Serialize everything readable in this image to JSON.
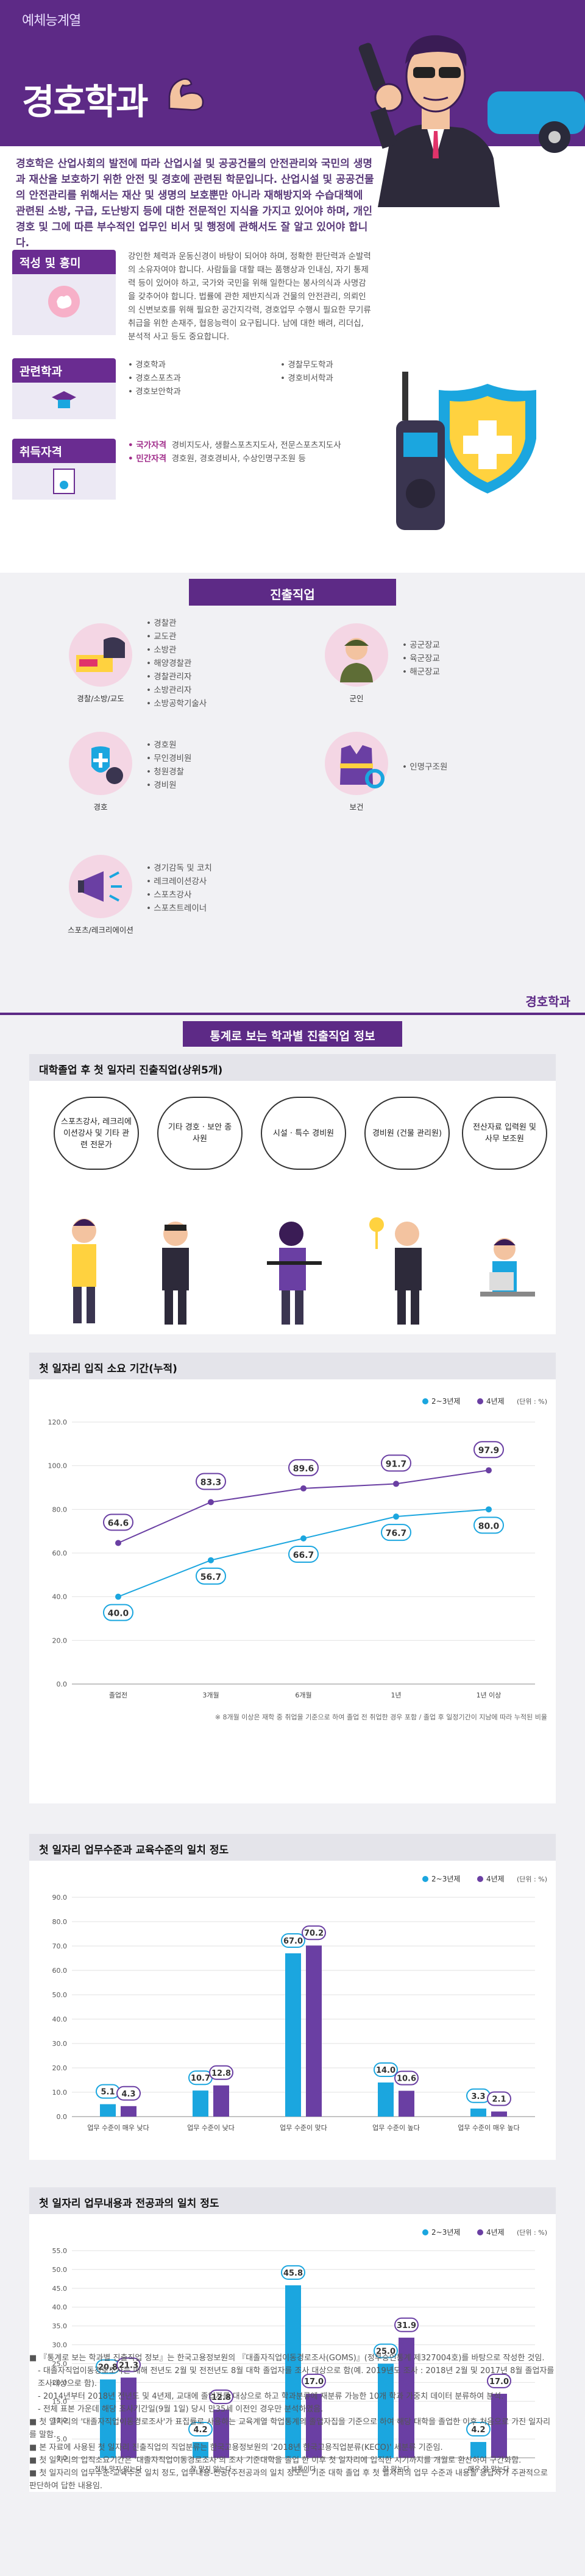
{
  "header": {
    "category": "예체능계열",
    "title": "경호학과"
  },
  "intro": "경호학은 산업사회의 발전에 따라 산업시설 및 공공건물의 안전관리와 국민의 생명과 재산을 보호하기 위한 안전 및 경호에 관련된 학문입니다. 산업시설 및 공공건물의 안전관리를 위해서는 재산 및 생명의 보호뿐만 아니라 재해방지와 수습대책에 관련된 소방, 구급, 도난방지 등에 대한 전문적인 지식을 가지고 있어야 하며, 개인경호 및 그에 따른 부수적인 업무인 비서 및 행정에 관해서도 잘 알고 있어야 합니다.",
  "aptitude": {
    "label": "적성 및 흥미",
    "text": "강인한 체력과 운동신경이 바탕이 되어야 하며, 정확한 판단력과 순발력의 소유자여야 합니다. 사람들을 대할 때는 품행상과 인내심, 자기 통제력 등이 있어야 하고, 국가와 국민을 위해 일한다는 봉사의식과 사명감을 갖추어야 합니다. 법률에 관한 제반지식과 건물의 안전관리, 의뢰인의 신변보호를 위해 필요한 공간지각력, 경호업무 수행시 필요한 무기류 취급을 위한 손재주, 협응능력이 요구됩니다. 남에 대한 배려, 리더십, 분석적 사고 등도 중요합니다."
  },
  "related": {
    "label": "관련학과",
    "col1": [
      "경호학과",
      "경호스포츠과",
      "경호보안학과"
    ],
    "col2": [
      "경찰무도학과",
      "경호비서학과"
    ]
  },
  "certs": {
    "label": "취득자격",
    "items": [
      {
        "k": "국가자격",
        "v": "경비지도사, 생활스포츠지도사, 전문스포츠지도사"
      },
      {
        "k": "민간자격",
        "v": "경호원, 경호경비사, 수상인명구조원 등"
      }
    ]
  },
  "careers": {
    "title": "진출직업",
    "groups": [
      {
        "caption": "경찰/소방/교도",
        "items": [
          "경찰관",
          "교도관",
          "소방관",
          "해양경찰관",
          "경찰관리자",
          "소방관리자",
          "소방공학기술사"
        ]
      },
      {
        "caption": "군인",
        "items": [
          "공군장교",
          "육군장교",
          "해군장교"
        ]
      },
      {
        "caption": "경호",
        "items": [
          "경호원",
          "무인경비원",
          "청원경찰",
          "경비원"
        ]
      },
      {
        "caption": "보건",
        "items": [
          "인명구조원"
        ]
      },
      {
        "caption": "스포츠/레크리에이션",
        "items": [
          "경기감독 및 코치",
          "레크레이션강사",
          "스포츠강사",
          "스포츠트레이너"
        ]
      }
    ]
  },
  "stats": {
    "tag": "경호학과",
    "title": "통계로 보는 학과별 진출직업 정보",
    "first_job_title": "대학졸업 후 첫 일자리 진출직업(상위5개)",
    "first_jobs": [
      "스포츠강사, 레크리에이션강사 및 기타 관련 전문가",
      "기타 경호 · 보안 종사원",
      "시설 · 특수 경비원",
      "경비원 (건물 관리원)",
      "전산자료 입력원 및 사무 보조원"
    ]
  },
  "colors": {
    "purple": "#5d2a86",
    "cyan": "#1ba6df",
    "violet": "#6a3fa3"
  },
  "chart_data": [
    {
      "type": "line",
      "title": "첫 일자리 입직 소요 기간(누적)",
      "unit": "(단위 : %)",
      "categories": [
        "졸업전",
        "3개월",
        "6개월",
        "1년",
        "1년 이상"
      ],
      "series": [
        {
          "name": "2~3년제",
          "values": [
            40.0,
            56.7,
            66.7,
            76.7,
            80.0
          ]
        },
        {
          "name": "4년제",
          "values": [
            64.6,
            83.3,
            89.6,
            91.7,
            97.9
          ]
        }
      ],
      "ylim": [
        0,
        120
      ],
      "yticks": [
        "0.0",
        "20.0",
        "40.0",
        "60.0",
        "80.0",
        "100.0",
        "120.0"
      ],
      "note": "※ 8개월 이상은 재학 중 취업을 기준으로 하여 졸업 전 취업한 경우 포함 / 졸업 후 일정기간이 지남에 따라 누적된 비율"
    },
    {
      "type": "bar",
      "title": "첫 일자리 업무수준과 교육수준의 일치 정도",
      "unit": "(단위 : %)",
      "categories": [
        "업무 수준이 매우 낮다",
        "업무 수준이 낮다",
        "업무 수준이 맞다",
        "업무 수준이 높다",
        "업무 수준이 매우 높다"
      ],
      "series": [
        {
          "name": "2~3년제",
          "values": [
            5.1,
            10.7,
            67.0,
            14.0,
            3.3
          ]
        },
        {
          "name": "4년제",
          "values": [
            4.3,
            12.8,
            70.2,
            10.6,
            2.1
          ]
        }
      ],
      "ylim": [
        0,
        90
      ],
      "yticks": [
        "0.0",
        "10.0",
        "20.0",
        "30.0",
        "40.0",
        "50.0",
        "60.0",
        "70.0",
        "80.0",
        "90.0"
      ]
    },
    {
      "type": "bar",
      "title": "첫 일자리 업무내용과 전공과의 일치 정도",
      "unit": "(단위 : %)",
      "categories": [
        "전혀 맞지 않는다",
        "잘 맞지 않는다",
        "보통이다",
        "잘 맞는다",
        "매우 잘 맞는다"
      ],
      "series": [
        {
          "name": "2~3년제",
          "values": [
            20.8,
            4.2,
            45.8,
            25.0,
            4.2
          ]
        },
        {
          "name": "4년제",
          "values": [
            21.3,
            12.8,
            17.0,
            31.9,
            17.0
          ]
        }
      ],
      "ylim": [
        0,
        55
      ],
      "yticks": [
        "0.0",
        "5.0",
        "10.0",
        "15.0",
        "20.0",
        "25.0",
        "30.0",
        "35.0",
        "40.0",
        "45.0",
        "50.0",
        "55.0"
      ]
    }
  ],
  "notes": [
    "『통계로 보는 학과별 진출직업 정보』는 한국고용정보원의 『대졸자직업이동경로조사(GOMS)』(정부승인통계 제327004호)를 바탕으로 작성한 것임.",
    "- 대졸자직업이동경로조사는 매해 전년도 2월 및 전전년도 8월 대학 졸업자를 조사 대상으로 함(예. 2019년도 조사 : 2018년 2월 및 2017년 8월 졸업자를 조사대상으로 함).",
    "- 2014년부터 2018년 전년도 및 4년제, 교대에 졸업자를 대상으로 하고 학과분류에 재분류 가능한 10개 학과 가중치 데이터 분류하여 분석.",
    "- 전체 표본 가운데 해당 조사기간일(9월 1일) 당시 만35세 이전인 경우만 분석하였음.",
    "첫 일자리의 '대졸자직업이동경로조사'가 표집률로 사용하는 교육계열 학업통계의 졸업자집을 기준으로 하여 해당 대학을 졸업한 이후 처음으로 가진 일자리를 말함.",
    "본 자료에 사용된 첫 일자리 진출직업의 직업분류는 한국고용정보원의 '2018년 한국고용직업분류(KECO)' 세분류 기준임.",
    "첫 일자리의 입직소요기간은 '대졸자직업이동경로조사'의 조사 기준대학을 졸업 한 이후 첫 일자리에 입직한 시기까지를 개월로 환산하여 구간화함.",
    "첫 일자리의 업무수준-교육수준 일치 정도, 업무내용-전공(주전공과의 일치 정도는 기준 대학 졸업 후 첫 일자리의 업무 수준과 내용을 응답자가 주관적으로 판단하여 답한 내용임."
  ]
}
